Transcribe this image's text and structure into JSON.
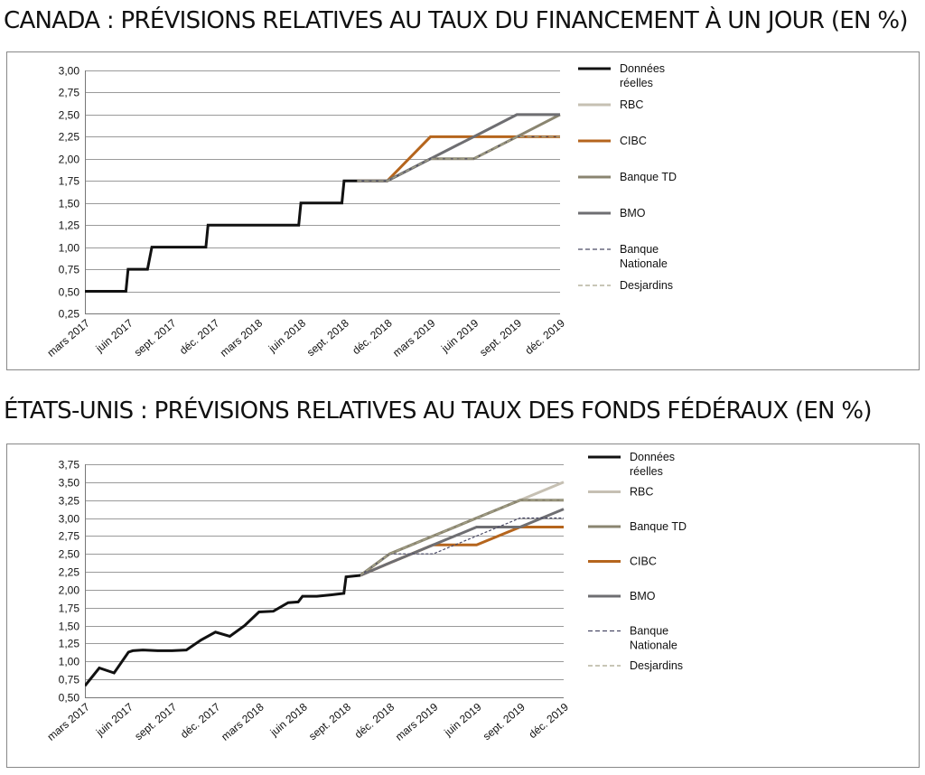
{
  "chart_data": [
    {
      "type": "line",
      "title": "CANADA : PRÉVISIONS RELATIVES AU TAUX DU FINANCEMENT À UN JOUR (EN %)",
      "xlabel": "",
      "ylabel": "",
      "x_tick_labels": [
        "mars 2017",
        "juin 2017",
        "sept. 2017",
        "déc. 2017",
        "mars 2018",
        "juin 2018",
        "sept. 2018",
        "déc. 2018",
        "mars 2019",
        "juin 2019",
        "sept. 2019",
        "déc. 2019"
      ],
      "y_tick_labels": [
        "0,25",
        "0,50",
        "0,75",
        "1,00",
        "1,25",
        "1,50",
        "1,75",
        "2,00",
        "2,25",
        "2,50",
        "2,75",
        "3,00"
      ],
      "ylim": [
        0.25,
        3.0
      ],
      "xlim": [
        0,
        11
      ],
      "grid": true,
      "legend_position": "right",
      "series": [
        {
          "name": "Données réelles",
          "color": "#111111",
          "style": "solid",
          "width": 3,
          "x": [
            0,
            0.95,
            1.0,
            1.05,
            1.45,
            1.55,
            1.85,
            2.8,
            2.85,
            3.15,
            4.1,
            4.2,
            4.95,
            5.0,
            5.95,
            6.0,
            6.3
          ],
          "y": [
            0.5,
            0.5,
            0.75,
            0.75,
            0.75,
            1.0,
            1.0,
            1.0,
            1.25,
            1.25,
            1.25,
            1.25,
            1.25,
            1.5,
            1.5,
            1.75,
            1.75
          ]
        },
        {
          "name": "RBC",
          "color": "#c6c0b3",
          "style": "solid",
          "width": 3,
          "x": [
            6.3,
            7.0,
            8.0,
            9.0,
            10.0,
            11.0
          ],
          "y": [
            1.75,
            1.75,
            2.0,
            2.25,
            2.5,
            2.5
          ]
        },
        {
          "name": "CIBC",
          "color": "#b5651d",
          "style": "solid",
          "width": 3,
          "x": [
            6.3,
            7.0,
            8.0,
            9.0,
            10.0,
            11.0
          ],
          "y": [
            1.75,
            1.75,
            2.25,
            2.25,
            2.25,
            2.25
          ]
        },
        {
          "name": "Banque TD",
          "color": "#8a8570",
          "style": "solid",
          "width": 3,
          "x": [
            6.3,
            7.0,
            8.0,
            9.0,
            10.0,
            11.0
          ],
          "y": [
            1.75,
            1.75,
            2.0,
            2.0,
            2.25,
            2.5
          ]
        },
        {
          "name": "BMO",
          "color": "#6e6e72",
          "style": "solid",
          "width": 3,
          "x": [
            6.3,
            7.0,
            8.0,
            9.0,
            10.0,
            11.0
          ],
          "y": [
            1.75,
            1.75,
            2.0,
            2.25,
            2.5,
            2.5
          ]
        },
        {
          "name": "Banque Nationale",
          "color": "#4a4a66",
          "style": "dashed",
          "width": 1.2,
          "x": [
            6.3,
            7.0,
            8.0,
            9.0,
            10.0,
            11.0
          ],
          "y": [
            1.75,
            1.75,
            2.0,
            2.0,
            2.25,
            2.25
          ]
        },
        {
          "name": "Desjardins",
          "color": "#a7a58a",
          "style": "dashed",
          "width": 1.2,
          "x": [
            6.3,
            7.0,
            8.0,
            9.0,
            10.0,
            11.0
          ],
          "y": [
            1.75,
            1.75,
            2.0,
            2.0,
            2.25,
            2.25
          ]
        }
      ]
    },
    {
      "type": "line",
      "title": "ÉTATS-UNIS : PRÉVISIONS RELATIVES AU TAUX DES FONDS FÉDÉRAUX (EN %)",
      "xlabel": "",
      "ylabel": "",
      "x_tick_labels": [
        "mars 2017",
        "juin 2017",
        "sept. 2017",
        "déc. 2017",
        "mars 2018",
        "juin 2018",
        "sept. 2018",
        "déc. 2018",
        "mars 2019",
        "juin 2019",
        "sept. 2019",
        "déc. 2019"
      ],
      "y_tick_labels": [
        "0,50",
        "0,75",
        "1,00",
        "1,25",
        "1,50",
        "1,75",
        "2,00",
        "2,25",
        "2,50",
        "2,75",
        "3,00",
        "3,25",
        "3,50",
        "3,75"
      ],
      "ylim": [
        0.5,
        3.75
      ],
      "xlim": [
        0,
        11
      ],
      "grid": true,
      "legend_position": "right",
      "series": [
        {
          "name": "Données réelles",
          "color": "#111111",
          "style": "solid",
          "width": 3,
          "x": [
            0,
            0.33,
            0.67,
            1.0,
            1.1,
            1.33,
            1.67,
            2.0,
            2.33,
            2.67,
            3.0,
            3.33,
            3.67,
            4.0,
            4.33,
            4.67,
            4.9,
            5.0,
            5.33,
            5.67,
            5.95,
            6.0,
            6.33
          ],
          "y": [
            0.66,
            0.91,
            0.84,
            1.13,
            1.15,
            1.16,
            1.15,
            1.15,
            1.16,
            1.3,
            1.41,
            1.35,
            1.5,
            1.69,
            1.7,
            1.82,
            1.83,
            1.91,
            1.91,
            1.93,
            1.95,
            2.18,
            2.2
          ]
        },
        {
          "name": "RBC",
          "color": "#c6c0b3",
          "style": "solid",
          "width": 3,
          "x": [
            6.33,
            7.0,
            8.0,
            9.0,
            10.0,
            11.0
          ],
          "y": [
            2.2,
            2.5,
            2.75,
            3.0,
            3.25,
            3.5
          ]
        },
        {
          "name": "Banque TD",
          "color": "#8a8570",
          "style": "solid",
          "width": 3,
          "x": [
            6.33,
            7.0,
            8.0,
            9.0,
            10.0,
            11.0
          ],
          "y": [
            2.2,
            2.5,
            2.75,
            3.0,
            3.25,
            3.25
          ]
        },
        {
          "name": "CIBC",
          "color": "#b5651d",
          "style": "solid",
          "width": 3,
          "x": [
            6.33,
            7.0,
            8.0,
            9.0,
            10.0,
            11.0
          ],
          "y": [
            2.2,
            2.375,
            2.625,
            2.625,
            2.875,
            2.875
          ]
        },
        {
          "name": "BMO",
          "color": "#6e6e72",
          "style": "solid",
          "width": 3,
          "x": [
            6.33,
            7.0,
            8.0,
            9.0,
            10.0,
            11.0
          ],
          "y": [
            2.2,
            2.375,
            2.625,
            2.875,
            2.875,
            3.125
          ]
        },
        {
          "name": "Banque Nationale",
          "color": "#4a4a66",
          "style": "dashed",
          "width": 1.2,
          "x": [
            6.33,
            7.0,
            8.0,
            9.0,
            10.0,
            11.0
          ],
          "y": [
            2.2,
            2.5,
            2.5,
            2.75,
            3.0,
            3.0
          ]
        },
        {
          "name": "Desjardins",
          "color": "#a7a58a",
          "style": "dashed",
          "width": 1.2,
          "x": [
            6.33,
            7.0,
            8.0,
            9.0,
            10.0,
            11.0
          ],
          "y": [
            2.2,
            2.5,
            2.75,
            3.0,
            3.25,
            3.25
          ]
        }
      ]
    }
  ]
}
